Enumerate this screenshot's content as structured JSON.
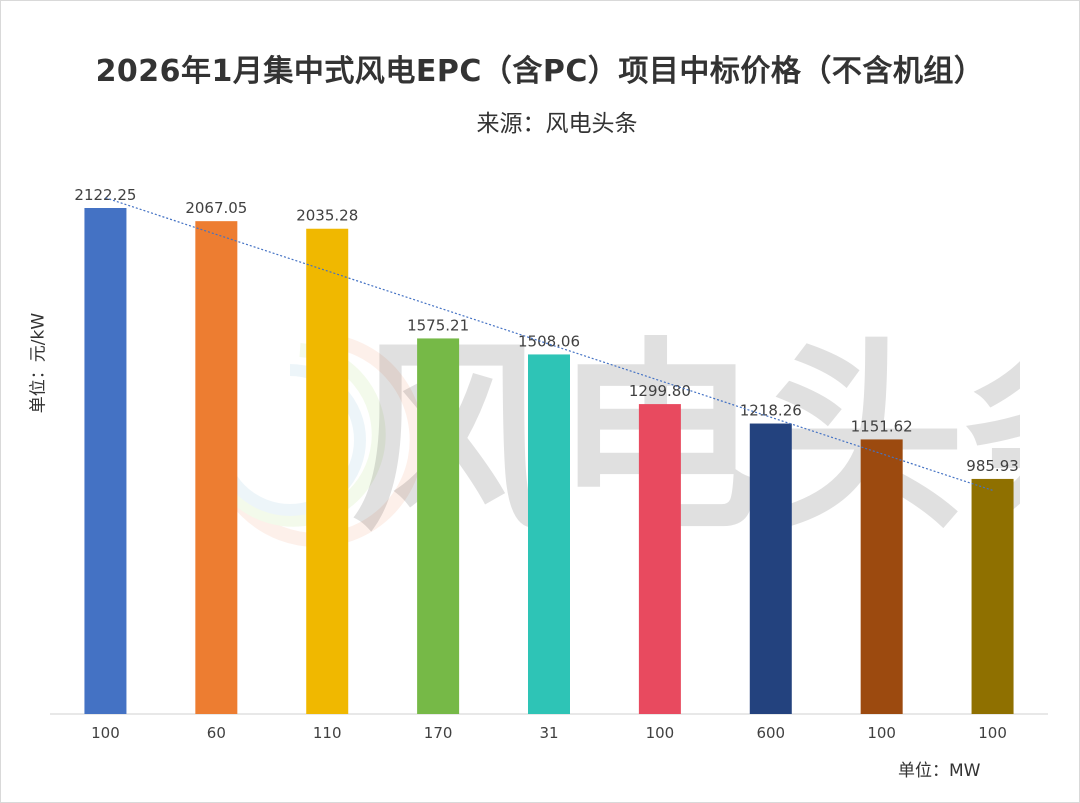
{
  "chart_data": {
    "type": "bar",
    "title": "2026年1月集中式风电EPC（含PC）项目中标价格（不含机组）",
    "subtitle": "来源：风电头条",
    "ylabel": "单位：元/kW",
    "xlabel": "单位：MW",
    "categories": [
      "100",
      "60",
      "110",
      "170",
      "31",
      "100",
      "600",
      "100",
      "100"
    ],
    "values": [
      2122.25,
      2067.05,
      2035.28,
      1575.21,
      1508.06,
      1299.8,
      1218.26,
      1151.62,
      985.93
    ],
    "value_labels": [
      "2122.25",
      "2067.05",
      "2035.28",
      "1575.21",
      "1508.06",
      "1299.80",
      "1218.26",
      "1151.62",
      "985.93"
    ],
    "colors": [
      "#4472c4",
      "#ed7d31",
      "#f0b800",
      "#76b947",
      "#2ec4b6",
      "#e84a5f",
      "#23427e",
      "#9c4a0f",
      "#8f7000"
    ],
    "ylim": [
      0,
      2122.25
    ],
    "trendline": "linear",
    "trendline_color": "#4472c4",
    "grid": false,
    "watermark": "风电头条"
  }
}
